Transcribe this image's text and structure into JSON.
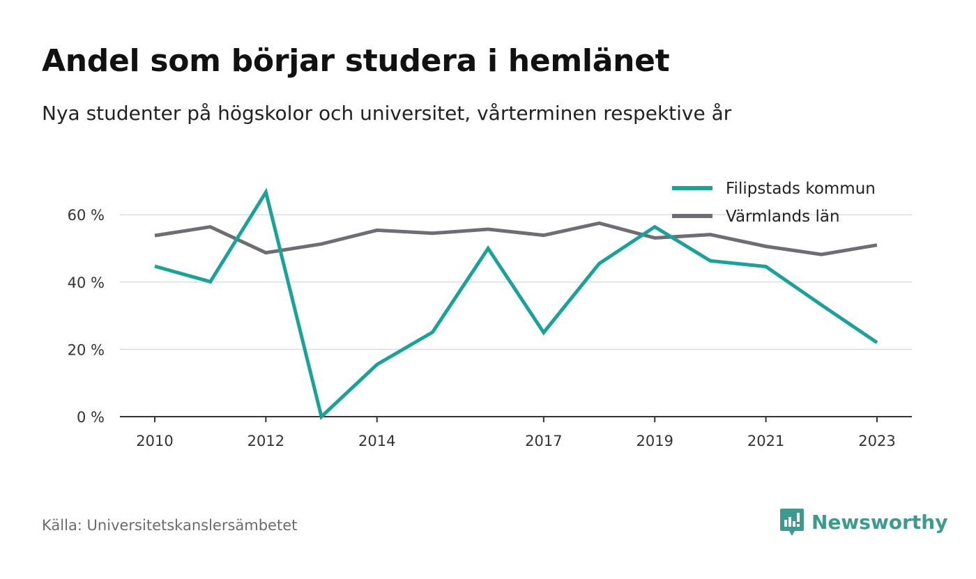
{
  "title": "Andel som börjar studera i hemlänet",
  "subtitle": "Nya studenter på högskolor och universitet, vårterminen respektive år",
  "source": "Källa: Universitetskanslersämbetet",
  "brand": {
    "name": "Newsworthy",
    "icon": "newsworthy-logo-icon"
  },
  "colors": {
    "series_1": "#17a398",
    "series_2": "#6e6d73",
    "grid": "#dddddd",
    "axis": "#333333",
    "brand": "#3d9a8f"
  },
  "chart_data": {
    "type": "line",
    "x": [
      2010,
      2011,
      2012,
      2013,
      2014,
      2015,
      2016,
      2017,
      2018,
      2019,
      2020,
      2021,
      2022,
      2023
    ],
    "x_tick_labels": [
      "2010",
      "2012",
      "2014",
      "2017",
      "2019",
      "2021",
      "2023"
    ],
    "y_tick_values": [
      0,
      20,
      40,
      60
    ],
    "y_tick_labels": [
      "0 %",
      "20 %",
      "40 %",
      "60 %"
    ],
    "ylim": [
      0,
      70
    ],
    "grid": true,
    "legend_position": "top-right",
    "series": [
      {
        "name": "Filipstads kommun",
        "values": [
          44.7,
          40.1,
          66.7,
          0.0,
          15.5,
          25.1,
          50.0,
          25.0,
          45.5,
          56.4,
          46.3,
          44.6,
          33.2,
          22.0
        ]
      },
      {
        "name": "Värmlands län",
        "values": [
          53.8,
          56.4,
          48.7,
          51.3,
          55.4,
          54.5,
          55.7,
          53.9,
          57.5,
          53.1,
          54.1,
          50.6,
          48.2,
          51.0
        ]
      }
    ]
  }
}
